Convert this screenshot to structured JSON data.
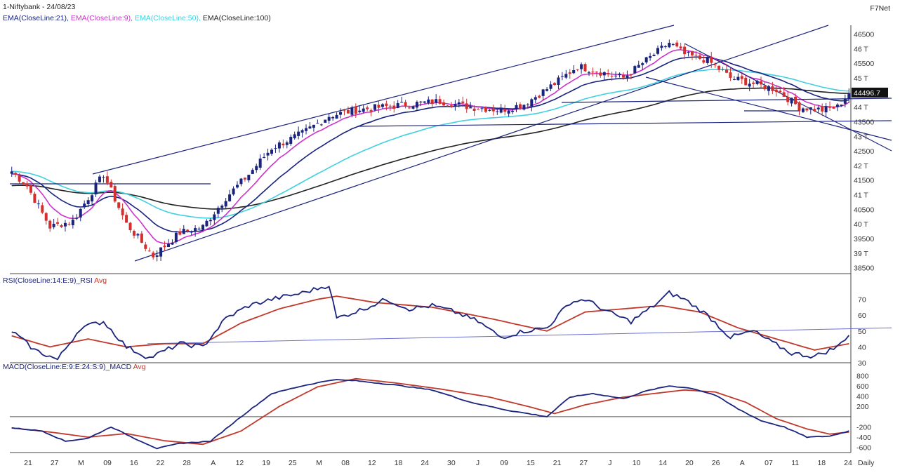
{
  "header": {
    "symbol_date": "1-Niftybank - 24/08/23",
    "brand": "F7Net",
    "ema_labels": [
      {
        "text": "EMA(CloseLine:21),",
        "color": "#1a237e"
      },
      {
        "text": "EMA(CloseLine:9),",
        "color": "#cc33cc"
      },
      {
        "text": "EMA(CloseLine:50),",
        "color": "#40d0e0"
      },
      {
        "text": "EMA(CloseLine:100)",
        "color": "#222222"
      }
    ]
  },
  "panels": {
    "price": {
      "price_tick_labels": [
        "46500",
        "46 T",
        "45500",
        "45 T",
        "44 T",
        "43500",
        "43 T",
        "42500",
        "42 T",
        "41500",
        "41 T",
        "40500",
        "40 T",
        "39500",
        "39 T",
        "38500"
      ],
      "price_tick_values": [
        46500,
        46000,
        45500,
        45000,
        44000,
        43500,
        43000,
        42500,
        42000,
        41500,
        41000,
        40500,
        40000,
        39500,
        39000,
        38500
      ],
      "last_price_label": "44496.7"
    },
    "rsi": {
      "title": "RSI(CloseLine:14:E:9)_RSI",
      "avg_label": "Avg",
      "ticks": [
        "70",
        "60",
        "50",
        "40",
        "30"
      ],
      "tick_values": [
        70,
        60,
        50,
        40,
        30
      ]
    },
    "macd": {
      "title": "MACD(CloseLine:E:9:E:24:S:9)_MACD",
      "avg_label": "Avg",
      "ticks": [
        "800",
        "600",
        "400",
        "200",
        "-200",
        "-400",
        "-600"
      ],
      "tick_values": [
        800,
        600,
        400,
        200,
        -200,
        -400,
        -600
      ]
    }
  },
  "xaxis": {
    "labels": [
      "21",
      "27",
      "M",
      "09",
      "16",
      "22",
      "28",
      "A",
      "12",
      "19",
      "25",
      "M",
      "08",
      "12",
      "18",
      "24",
      "30",
      "J",
      "09",
      "15",
      "21",
      "27",
      "J",
      "10",
      "14",
      "20",
      "26",
      "A",
      "07",
      "11",
      "18",
      "24"
    ],
    "period_label": "Daily"
  },
  "colors": {
    "candle_up": "#1a237e",
    "candle_down": "#d32f2f",
    "ema21": "#1a237e",
    "ema9": "#cc33cc",
    "ema50": "#40d0e0",
    "ema100": "#222222",
    "rsi_line": "#1a237e",
    "rsi_avg": "#c0392b",
    "trendline": "#1a237e"
  },
  "chart_data": {
    "type": "candlestick",
    "symbol": "Niftybank",
    "interval": "Daily",
    "price_ylim": [
      38300,
      46800
    ],
    "price_keypoints": [
      [
        0,
        41800
      ],
      [
        4,
        41300
      ],
      [
        10,
        39900
      ],
      [
        16,
        40100
      ],
      [
        24,
        41700
      ],
      [
        30,
        40000
      ],
      [
        37,
        38900
      ],
      [
        44,
        39700
      ],
      [
        50,
        39900
      ],
      [
        56,
        40900
      ],
      [
        62,
        41700
      ],
      [
        68,
        42600
      ],
      [
        76,
        43100
      ],
      [
        83,
        43700
      ],
      [
        90,
        43900
      ],
      [
        97,
        44000
      ],
      [
        104,
        44100
      ],
      [
        112,
        44200
      ],
      [
        120,
        44000
      ],
      [
        128,
        43900
      ],
      [
        134,
        44100
      ],
      [
        142,
        44800
      ],
      [
        148,
        45400
      ],
      [
        154,
        45200
      ],
      [
        160,
        45000
      ],
      [
        166,
        45600
      ],
      [
        172,
        46200
      ],
      [
        176,
        45800
      ],
      [
        182,
        45600
      ],
      [
        188,
        45000
      ],
      [
        194,
        44800
      ],
      [
        200,
        44600
      ],
      [
        206,
        44000
      ],
      [
        212,
        43900
      ],
      [
        216,
        44000
      ],
      [
        219,
        44500
      ]
    ],
    "rsi_ylim": [
      30,
      80
    ],
    "rsi_keypoints": [
      [
        0,
        50
      ],
      [
        6,
        38
      ],
      [
        12,
        32
      ],
      [
        18,
        52
      ],
      [
        24,
        56
      ],
      [
        30,
        40
      ],
      [
        36,
        33
      ],
      [
        44,
        42
      ],
      [
        50,
        40
      ],
      [
        56,
        58
      ],
      [
        62,
        66
      ],
      [
        68,
        70
      ],
      [
        76,
        74
      ],
      [
        83,
        79
      ],
      [
        85,
        58
      ],
      [
        92,
        64
      ],
      [
        98,
        70
      ],
      [
        104,
        64
      ],
      [
        110,
        66
      ],
      [
        116,
        62
      ],
      [
        122,
        56
      ],
      [
        128,
        46
      ],
      [
        134,
        50
      ],
      [
        140,
        52
      ],
      [
        146,
        68
      ],
      [
        150,
        70
      ],
      [
        156,
        62
      ],
      [
        162,
        56
      ],
      [
        168,
        66
      ],
      [
        172,
        74
      ],
      [
        176,
        70
      ],
      [
        182,
        60
      ],
      [
        188,
        46
      ],
      [
        194,
        50
      ],
      [
        198,
        44
      ],
      [
        204,
        36
      ],
      [
        210,
        34
      ],
      [
        216,
        40
      ],
      [
        219,
        48
      ]
    ],
    "rsi_avg_keypoints": [
      [
        0,
        47
      ],
      [
        10,
        40
      ],
      [
        20,
        45
      ],
      [
        30,
        40
      ],
      [
        40,
        42
      ],
      [
        50,
        42
      ],
      [
        60,
        55
      ],
      [
        70,
        64
      ],
      [
        80,
        70
      ],
      [
        85,
        72
      ],
      [
        95,
        68
      ],
      [
        110,
        65
      ],
      [
        125,
        58
      ],
      [
        140,
        50
      ],
      [
        150,
        62
      ],
      [
        160,
        64
      ],
      [
        170,
        66
      ],
      [
        180,
        62
      ],
      [
        190,
        52
      ],
      [
        200,
        45
      ],
      [
        210,
        38
      ],
      [
        219,
        42
      ]
    ],
    "macd_ylim": [
      -700,
      900
    ],
    "macd_keypoints": [
      [
        0,
        -220
      ],
      [
        8,
        -280
      ],
      [
        14,
        -480
      ],
      [
        20,
        -420
      ],
      [
        26,
        -200
      ],
      [
        32,
        -420
      ],
      [
        38,
        -620
      ],
      [
        44,
        -520
      ],
      [
        52,
        -480
      ],
      [
        60,
        0
      ],
      [
        68,
        450
      ],
      [
        76,
        600
      ],
      [
        84,
        720
      ],
      [
        90,
        700
      ],
      [
        100,
        620
      ],
      [
        110,
        520
      ],
      [
        120,
        280
      ],
      [
        130,
        120
      ],
      [
        140,
        0
      ],
      [
        146,
        380
      ],
      [
        152,
        450
      ],
      [
        160,
        350
      ],
      [
        166,
        500
      ],
      [
        172,
        600
      ],
      [
        178,
        550
      ],
      [
        184,
        420
      ],
      [
        190,
        150
      ],
      [
        196,
        -80
      ],
      [
        202,
        -200
      ],
      [
        208,
        -400
      ],
      [
        214,
        -380
      ],
      [
        219,
        -280
      ]
    ],
    "macd_avg_keypoints": [
      [
        0,
        -220
      ],
      [
        10,
        -300
      ],
      [
        20,
        -400
      ],
      [
        30,
        -330
      ],
      [
        40,
        -470
      ],
      [
        50,
        -540
      ],
      [
        60,
        -280
      ],
      [
        70,
        200
      ],
      [
        80,
        580
      ],
      [
        90,
        740
      ],
      [
        100,
        660
      ],
      [
        112,
        540
      ],
      [
        125,
        380
      ],
      [
        135,
        200
      ],
      [
        142,
        60
      ],
      [
        150,
        230
      ],
      [
        160,
        380
      ],
      [
        168,
        450
      ],
      [
        176,
        520
      ],
      [
        184,
        480
      ],
      [
        192,
        280
      ],
      [
        200,
        -40
      ],
      [
        208,
        -240
      ],
      [
        214,
        -340
      ],
      [
        219,
        -300
      ]
    ]
  }
}
